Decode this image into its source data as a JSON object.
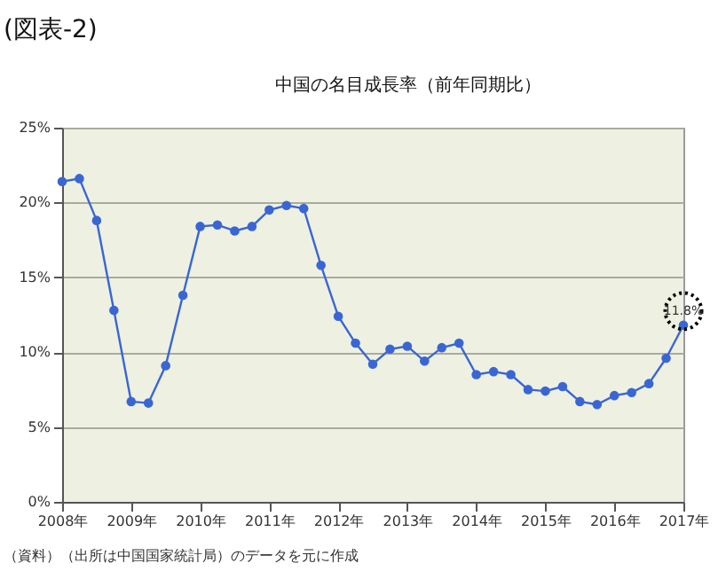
{
  "chart_data": {
    "type": "line",
    "title": "中国の名目成長率（前年同期比）",
    "x": [
      2008,
      2008.25,
      2008.5,
      2008.75,
      2009,
      2009.25,
      2009.5,
      2009.75,
      2010,
      2010.25,
      2010.5,
      2010.75,
      2011,
      2011.25,
      2011.5,
      2011.75,
      2012,
      2012.25,
      2012.5,
      2012.75,
      2013,
      2013.25,
      2013.5,
      2013.75,
      2014,
      2014.25,
      2014.5,
      2014.75,
      2015,
      2015.25,
      2015.5,
      2015.75,
      2016,
      2016.25,
      2016.5,
      2016.75,
      2017
    ],
    "series": [
      {
        "color": "#3a66d4",
        "values": [
          21.4,
          21.6,
          18.8,
          12.8,
          6.7,
          6.6,
          9.1,
          13.8,
          18.4,
          18.5,
          18.1,
          18.4,
          19.5,
          19.8,
          19.6,
          15.8,
          12.4,
          10.6,
          9.2,
          10.2,
          10.4,
          9.4,
          10.3,
          10.6,
          8.5,
          8.7,
          8.5,
          7.5,
          7.4,
          7.7,
          6.7,
          6.5,
          7.1,
          7.3,
          7.9,
          9.6,
          11.8
        ]
      }
    ],
    "xlim": [
      2008,
      2017
    ],
    "xticks": [
      {
        "value": 2008,
        "label": "2008年"
      },
      {
        "value": 2009,
        "label": "2009年"
      },
      {
        "value": 2010,
        "label": "2010年"
      },
      {
        "value": 2011,
        "label": "2011年"
      },
      {
        "value": 2012,
        "label": "2012年"
      },
      {
        "value": 2013,
        "label": "2013年"
      },
      {
        "value": 2014,
        "label": "2014年"
      },
      {
        "value": 2015,
        "label": "2015年"
      },
      {
        "value": 2016,
        "label": "2016年"
      },
      {
        "value": 2017,
        "label": "2017年"
      }
    ],
    "ylim": [
      0,
      25
    ],
    "yticks": [
      {
        "value": 0,
        "label": "0%"
      },
      {
        "value": 5,
        "label": "5%"
      },
      {
        "value": 10,
        "label": "10%"
      },
      {
        "value": 15,
        "label": "15%"
      },
      {
        "value": 20,
        "label": "20%"
      },
      {
        "value": 25,
        "label": "25%"
      }
    ],
    "annotations": [
      "(図表-2)",
      {
        "text": "11.8%",
        "x": 2017,
        "y": 11.8
      },
      "（資料）（出所は中国国家統計局）のデータを元に作成"
    ],
    "grid": "y",
    "marker": "circle",
    "line_style": "solid"
  }
}
